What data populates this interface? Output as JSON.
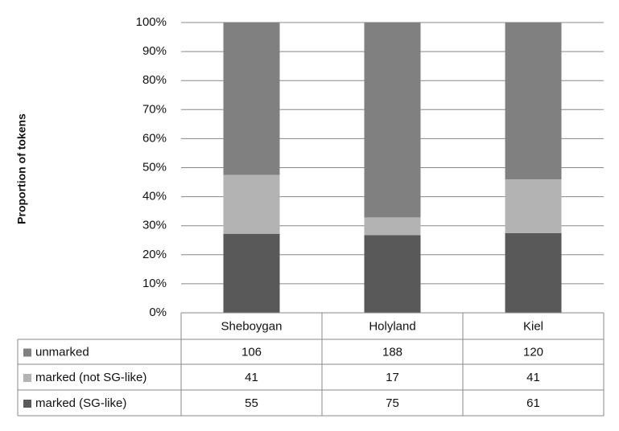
{
  "chart_data": {
    "type": "bar",
    "stack": "percent",
    "y_label": "Proportion of tokens",
    "categories": [
      "Sheboygan",
      "Holyland",
      "Kiel"
    ],
    "series": [
      {
        "name": "unmarked",
        "color": "#808080",
        "values": [
          106,
          188,
          120
        ]
      },
      {
        "name": "marked (not SG-like)",
        "color": "#b3b3b3",
        "values": [
          41,
          17,
          41
        ]
      },
      {
        "name": "marked (SG-like)",
        "color": "#595959",
        "values": [
          55,
          75,
          61
        ]
      }
    ],
    "ylim": [
      0,
      100
    ],
    "yticks": [
      {
        "value": 0,
        "label": "0%"
      },
      {
        "value": 10,
        "label": "10%"
      },
      {
        "value": 20,
        "label": "20%"
      },
      {
        "value": 30,
        "label": "30%"
      },
      {
        "value": 40,
        "label": "40%"
      },
      {
        "value": 50,
        "label": "50%"
      },
      {
        "value": 60,
        "label": "60%"
      },
      {
        "value": 70,
        "label": "70%"
      },
      {
        "value": 80,
        "label": "80%"
      },
      {
        "value": 90,
        "label": "90%"
      },
      {
        "value": 100,
        "label": "100%"
      }
    ],
    "grid": true,
    "data_table": true
  }
}
